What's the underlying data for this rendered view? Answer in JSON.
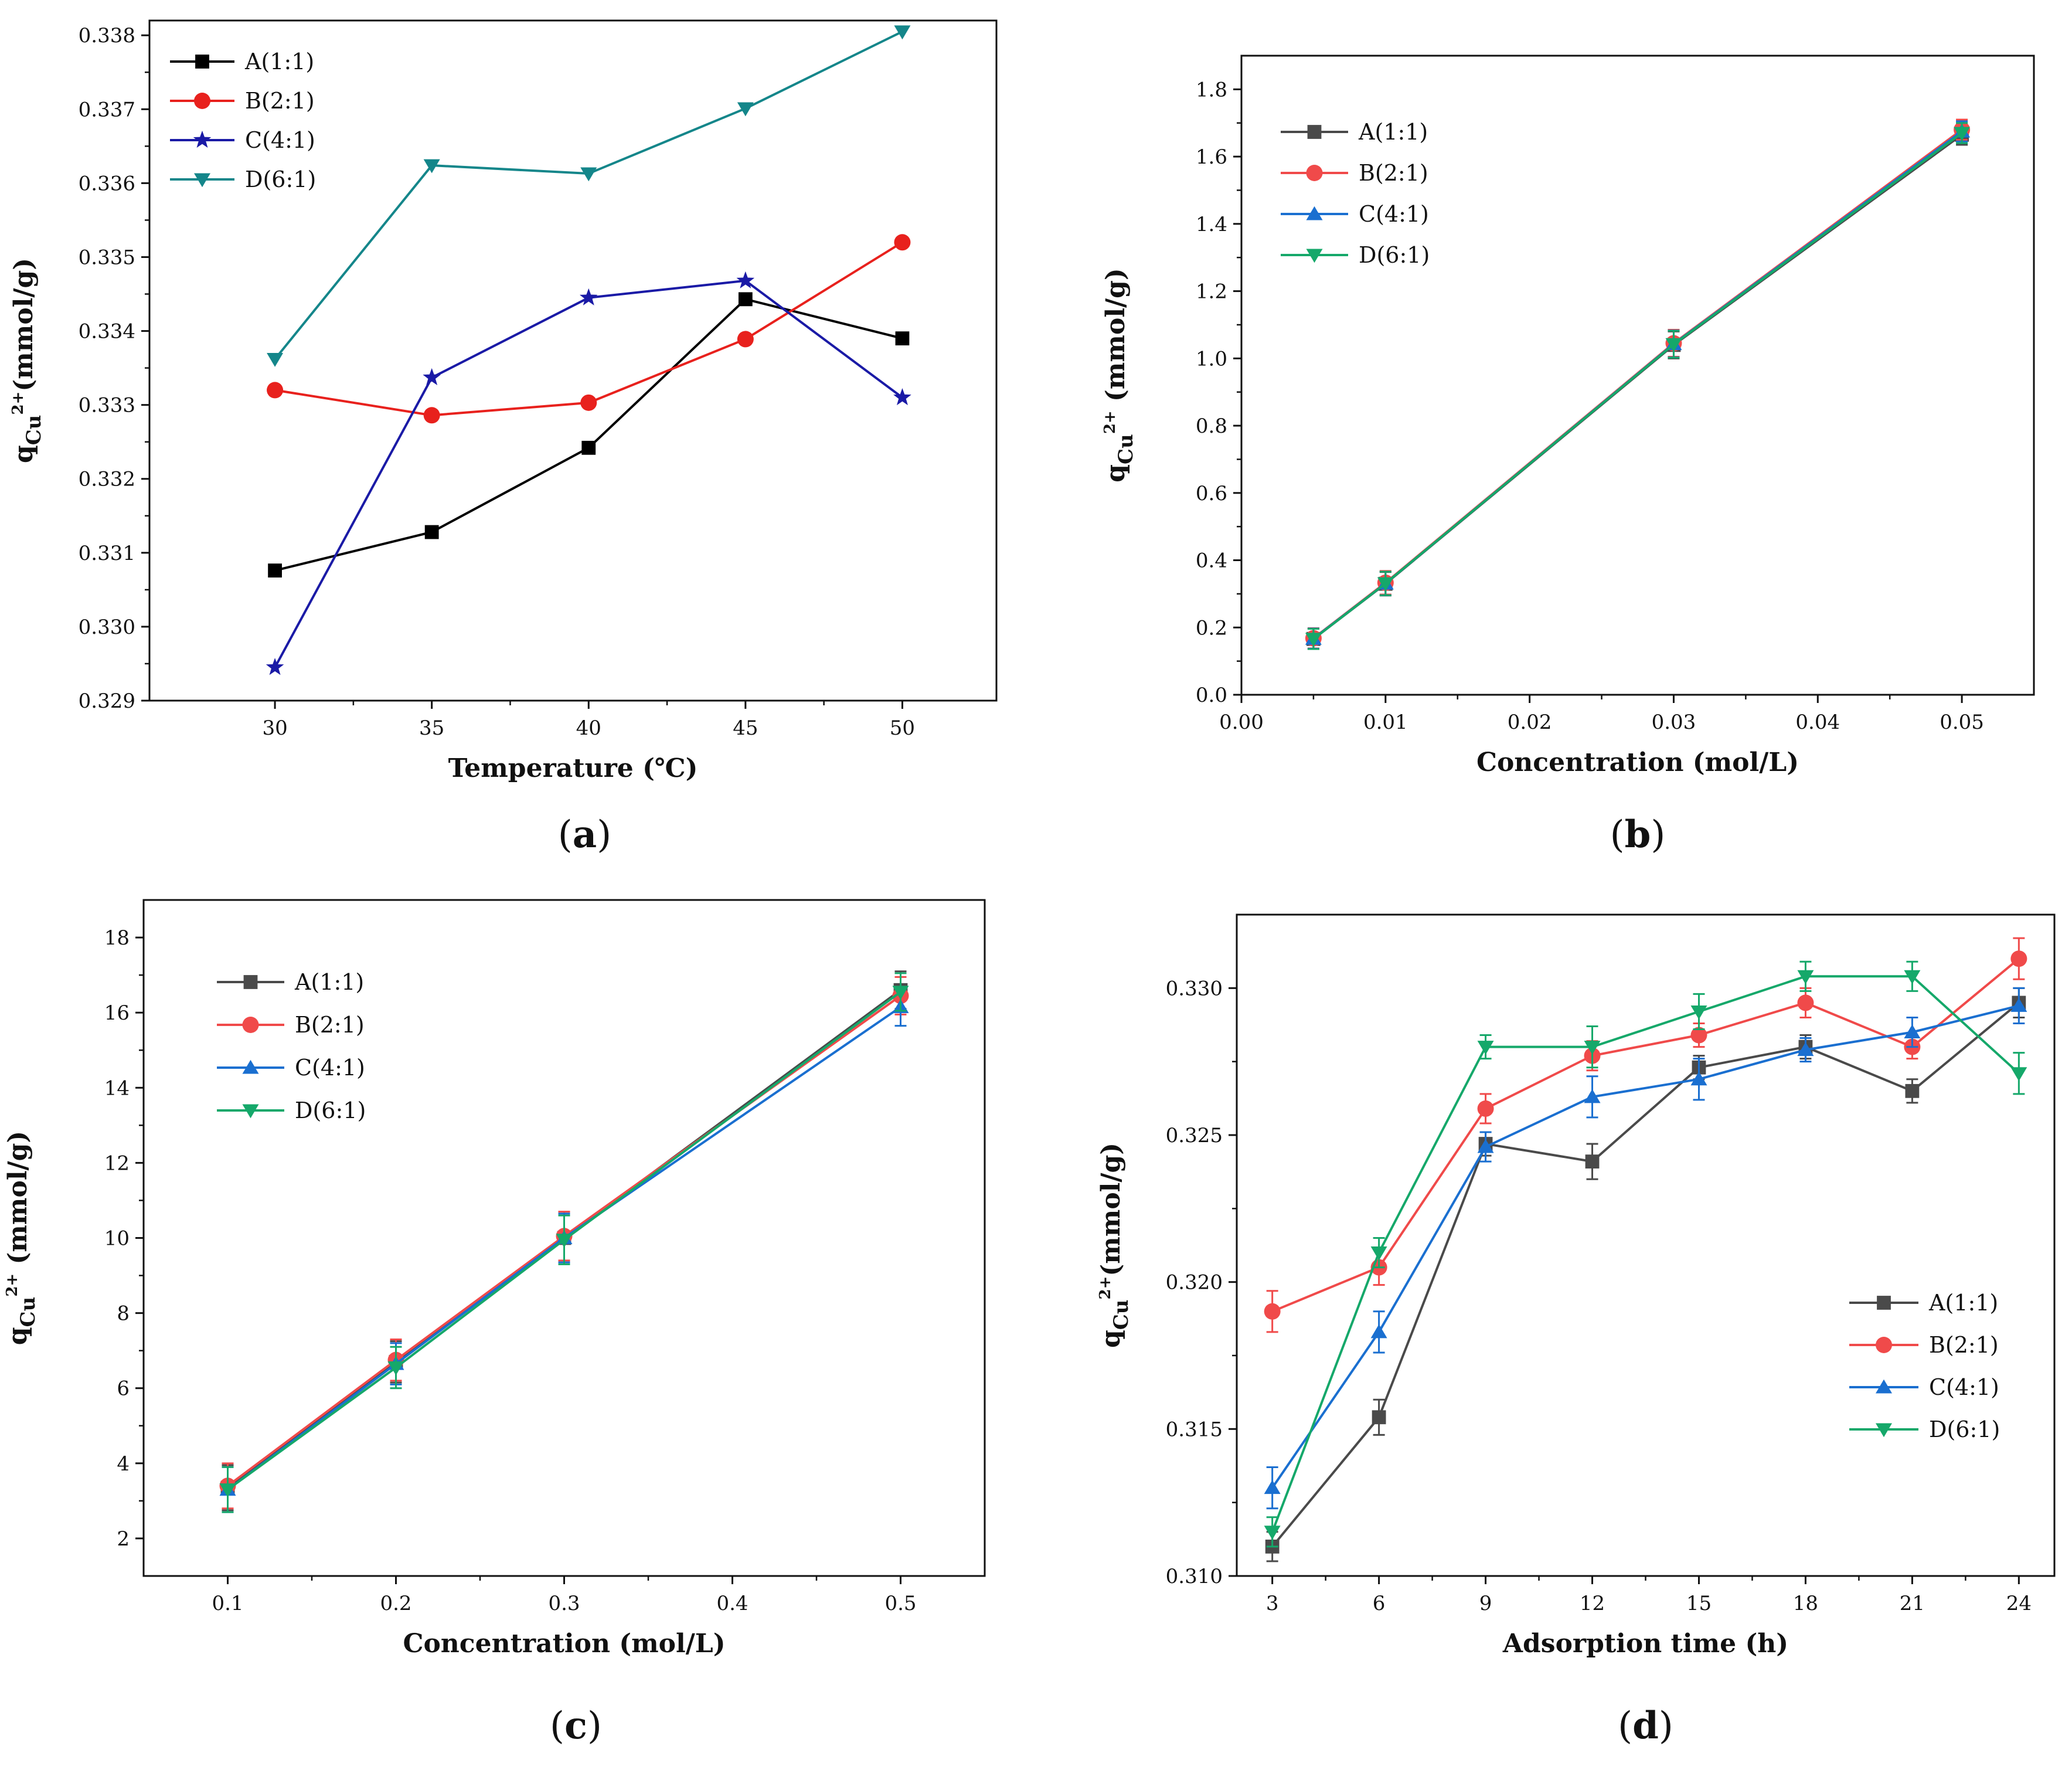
{
  "chart_data": [
    {
      "panel": "a",
      "type": "line",
      "panel_label": "a",
      "xlabel": "Temperature (℃)",
      "ylabel_main": "q",
      "ylabel_sub": "Cu",
      "ylabel_sup": "2+",
      "ylabel_rest": "(mmol/g)",
      "xlim": [
        26,
        53
      ],
      "ylim": [
        0.329,
        0.3382
      ],
      "xticks": [
        30,
        35,
        40,
        45,
        50
      ],
      "xtick_labels": [
        "30",
        "35",
        "40",
        "45",
        "50"
      ],
      "yticks": [
        0.329,
        0.33,
        0.331,
        0.332,
        0.333,
        0.334,
        0.335,
        0.336,
        0.337,
        0.338
      ],
      "ytick_labels": [
        "0.329",
        "0.330",
        "0.331",
        "0.332",
        "0.333",
        "0.334",
        "0.335",
        "0.336",
        "0.337",
        "0.338"
      ],
      "legend_position": "top-left",
      "error_bars": false,
      "series": [
        {
          "name": "A(1:1)",
          "color": "#000000",
          "marker": "square",
          "x": [
            30,
            35,
            40,
            45,
            50
          ],
          "y": [
            0.33076,
            0.33128,
            0.33242,
            0.33443,
            0.3339
          ]
        },
        {
          "name": "B(2:1)",
          "color": "#e8211d",
          "marker": "circle",
          "x": [
            30,
            35,
            40,
            45,
            50
          ],
          "y": [
            0.3332,
            0.33286,
            0.33303,
            0.33389,
            0.3352
          ]
        },
        {
          "name": "C(4:1)",
          "color": "#1a1aa6",
          "marker": "star",
          "x": [
            30,
            35,
            40,
            45,
            50
          ],
          "y": [
            0.32945,
            0.33337,
            0.33445,
            0.33468,
            0.3331
          ]
        },
        {
          "name": "D(6:1)",
          "color": "#14868a",
          "marker": "triangle-down",
          "x": [
            30,
            35,
            40,
            45,
            50
          ],
          "y": [
            0.33362,
            0.33624,
            0.33613,
            0.33701,
            0.33805
          ]
        }
      ]
    },
    {
      "panel": "b",
      "type": "line",
      "panel_label": "b",
      "xlabel": "Concentration (mol/L)",
      "ylabel_main": "q",
      "ylabel_sub": "Cu",
      "ylabel_sup": "2+",
      "ylabel_rest": " (mmol/g)",
      "xlim": [
        0,
        0.055
      ],
      "ylim": [
        0,
        1.9
      ],
      "xticks": [
        0,
        0.01,
        0.02,
        0.03,
        0.04,
        0.05
      ],
      "xtick_labels": [
        "0.00",
        "0.01",
        "0.02",
        "0.03",
        "0.04",
        "0.05"
      ],
      "yticks": [
        0,
        0.2,
        0.4,
        0.6,
        0.8,
        1.0,
        1.2,
        1.4,
        1.6,
        1.8
      ],
      "ytick_labels": [
        "0.0",
        "0.2",
        "0.4",
        "0.6",
        "0.8",
        "1.0",
        "1.2",
        "1.4",
        "1.6",
        "1.8"
      ],
      "legend_position": "top-left",
      "error_bars": true,
      "series": [
        {
          "name": "A(1:1)",
          "color": "#4a4a4a",
          "marker": "square",
          "x": [
            0.005,
            0.01,
            0.03,
            0.05
          ],
          "y": [
            0.166,
            0.33,
            1.04,
            1.665
          ],
          "err": [
            0.03,
            0.035,
            0.04,
            0.03
          ]
        },
        {
          "name": "B(2:1)",
          "color": "#f04a4a",
          "marker": "circle",
          "x": [
            0.005,
            0.01,
            0.03,
            0.05
          ],
          "y": [
            0.168,
            0.333,
            1.045,
            1.68
          ],
          "err": [
            0.03,
            0.035,
            0.04,
            0.03
          ]
        },
        {
          "name": "C(4:1)",
          "color": "#1a6fd0",
          "marker": "triangle-up",
          "x": [
            0.005,
            0.01,
            0.03,
            0.05
          ],
          "y": [
            0.167,
            0.331,
            1.043,
            1.675
          ],
          "err": [
            0.03,
            0.035,
            0.04,
            0.03
          ]
        },
        {
          "name": "D(6:1)",
          "color": "#15a86a",
          "marker": "triangle-down",
          "x": [
            0.005,
            0.01,
            0.03,
            0.05
          ],
          "y": [
            0.166,
            0.331,
            1.042,
            1.67
          ],
          "err": [
            0.03,
            0.035,
            0.04,
            0.03
          ]
        }
      ]
    },
    {
      "panel": "c",
      "type": "line",
      "panel_label": "c",
      "xlabel": "Concentration (mol/L)",
      "ylabel_main": "q",
      "ylabel_sub": "Cu",
      "ylabel_sup": "2+",
      "ylabel_rest": " (mmol/g)",
      "xlim": [
        0.05,
        0.55
      ],
      "ylim": [
        1,
        19
      ],
      "xticks": [
        0.1,
        0.2,
        0.3,
        0.4,
        0.5
      ],
      "xtick_labels": [
        "0.1",
        "0.2",
        "0.3",
        "0.4",
        "0.5"
      ],
      "yticks": [
        2,
        4,
        6,
        8,
        10,
        12,
        14,
        16,
        18
      ],
      "ytick_labels": [
        "2",
        "4",
        "6",
        "8",
        "10",
        "12",
        "14",
        "16",
        "18"
      ],
      "legend_position": "top-left",
      "error_bars": true,
      "series": [
        {
          "name": "A(1:1)",
          "color": "#4a4a4a",
          "marker": "square",
          "x": [
            0.1,
            0.2,
            0.3,
            0.5
          ],
          "y": [
            3.35,
            6.7,
            10.0,
            16.6
          ],
          "err": [
            0.6,
            0.55,
            0.65,
            0.5
          ]
        },
        {
          "name": "B(2:1)",
          "color": "#f04a4a",
          "marker": "circle",
          "x": [
            0.1,
            0.2,
            0.3,
            0.5
          ],
          "y": [
            3.4,
            6.75,
            10.05,
            16.45
          ],
          "err": [
            0.6,
            0.55,
            0.65,
            0.5
          ]
        },
        {
          "name": "C(4:1)",
          "color": "#1a6fd0",
          "marker": "triangle-up",
          "x": [
            0.1,
            0.2,
            0.3,
            0.5
          ],
          "y": [
            3.3,
            6.65,
            10.0,
            16.15
          ],
          "err": [
            0.6,
            0.55,
            0.65,
            0.5
          ]
        },
        {
          "name": "D(6:1)",
          "color": "#15a86a",
          "marker": "triangle-down",
          "x": [
            0.1,
            0.2,
            0.3,
            0.5
          ],
          "y": [
            3.3,
            6.55,
            9.95,
            16.55
          ],
          "err": [
            0.6,
            0.55,
            0.65,
            0.5
          ]
        }
      ]
    },
    {
      "panel": "d",
      "type": "line",
      "panel_label": "d",
      "xlabel": "Adsorption time (h)",
      "ylabel_main": "q",
      "ylabel_sub": "Cu",
      "ylabel_sup": "2+",
      "ylabel_rest": "(mmol/g)",
      "xlim": [
        2,
        25
      ],
      "ylim": [
        0.31,
        0.3325
      ],
      "xticks": [
        3,
        6,
        9,
        12,
        15,
        18,
        21,
        24
      ],
      "xtick_labels": [
        "3",
        "6",
        "9",
        "12",
        "15",
        "18",
        "21",
        "24"
      ],
      "yticks": [
        0.31,
        0.315,
        0.32,
        0.325,
        0.33
      ],
      "ytick_labels": [
        "0.310",
        "0.315",
        "0.320",
        "0.325",
        "0.330"
      ],
      "legend_position": "bottom-right",
      "error_bars": true,
      "series": [
        {
          "name": "A(1:1)",
          "color": "#4a4a4a",
          "marker": "square",
          "x": [
            3,
            6,
            9,
            12,
            15,
            18,
            21,
            24
          ],
          "y": [
            0.311,
            0.3154,
            0.3247,
            0.3241,
            0.3273,
            0.328,
            0.3265,
            0.3295
          ],
          "err": [
            0.0005,
            0.0006,
            0.0004,
            0.0006,
            0.0004,
            0.0004,
            0.0004,
            0.0005
          ]
        },
        {
          "name": "B(2:1)",
          "color": "#f04a4a",
          "marker": "circle",
          "x": [
            3,
            6,
            9,
            12,
            15,
            18,
            21,
            24
          ],
          "y": [
            0.319,
            0.3205,
            0.3259,
            0.3277,
            0.3284,
            0.3295,
            0.328,
            0.331
          ],
          "err": [
            0.0007,
            0.0006,
            0.0005,
            0.0005,
            0.0004,
            0.0005,
            0.0004,
            0.0007
          ]
        },
        {
          "name": "C(4:1)",
          "color": "#1a6fd0",
          "marker": "triangle-up",
          "x": [
            3,
            6,
            9,
            12,
            15,
            18,
            21,
            24
          ],
          "y": [
            0.313,
            0.3183,
            0.3246,
            0.3263,
            0.3269,
            0.3279,
            0.3285,
            0.3294
          ],
          "err": [
            0.0007,
            0.0007,
            0.0005,
            0.0007,
            0.0007,
            0.0004,
            0.0005,
            0.0006
          ]
        },
        {
          "name": "D(6:1)",
          "color": "#15a86a",
          "marker": "triangle-down",
          "x": [
            3,
            6,
            9,
            12,
            15,
            18,
            21,
            24
          ],
          "y": [
            0.3115,
            0.321,
            0.328,
            0.328,
            0.3292,
            0.3304,
            0.3304,
            0.3271
          ],
          "err": [
            0.0005,
            0.0005,
            0.0004,
            0.0007,
            0.0006,
            0.0005,
            0.0005,
            0.0007
          ]
        }
      ]
    }
  ]
}
